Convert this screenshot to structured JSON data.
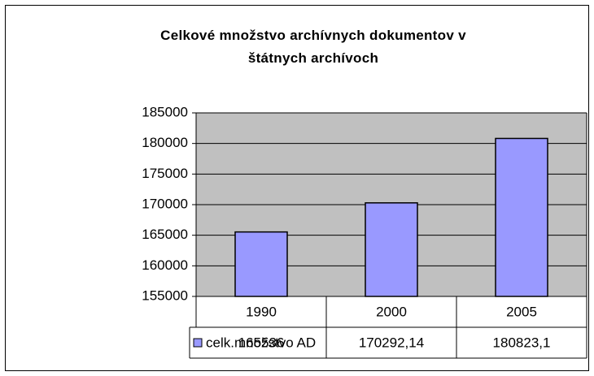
{
  "chart_data": {
    "type": "bar",
    "title": "Celkové množstvo archívnych dokumentov v štátnych archívoch",
    "categories": [
      "1990",
      "2000",
      "2005"
    ],
    "series": [
      {
        "name": "celk.množstvo AD",
        "color": "#9999ff",
        "values": [
          165536,
          170292.14,
          180823.1
        ],
        "value_labels": [
          "165536",
          "170292,14",
          "180823,1"
        ]
      }
    ],
    "ylim": [
      155000,
      185000
    ],
    "yticks": [
      155000,
      160000,
      165000,
      170000,
      175000,
      180000,
      185000
    ],
    "grid": true,
    "plot_background": "#c0c0c0"
  }
}
